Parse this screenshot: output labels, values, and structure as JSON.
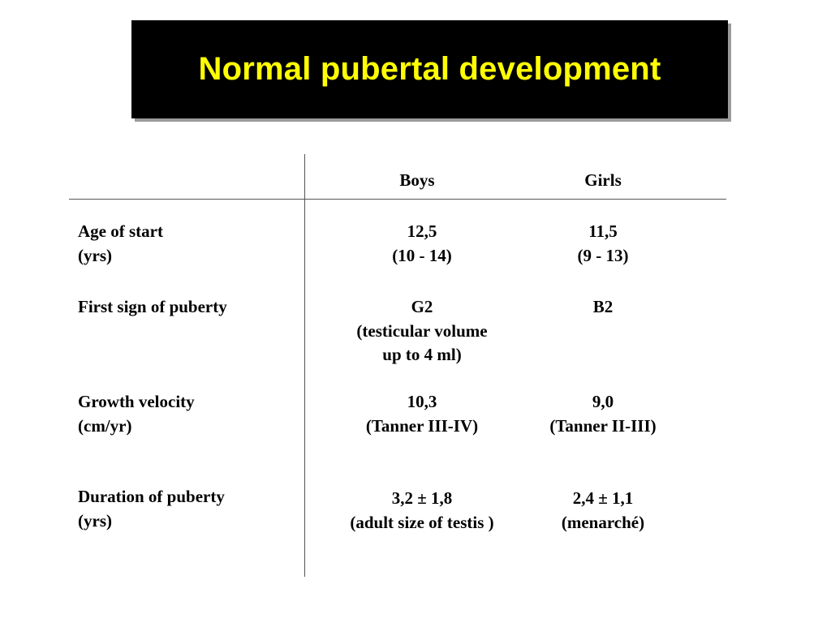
{
  "title": "Normal pubertal development",
  "table": {
    "headers": {
      "boys": "Boys",
      "girls": "Girls"
    },
    "rows": [
      {
        "label": [
          "Age of start",
          "(yrs)"
        ],
        "boys": [
          "12,5",
          "(10 - 14)"
        ],
        "girls": [
          "11,5",
          "(9 - 13)"
        ]
      },
      {
        "label": [
          "First sign of puberty"
        ],
        "boys": [
          "G2",
          "(testicular volume",
          "up to 4 ml)"
        ],
        "girls": [
          "B2"
        ]
      },
      {
        "label": [
          "Growth velocity",
          "(cm/yr)"
        ],
        "boys": [
          "10,3",
          "(Tanner III-IV)"
        ],
        "girls": [
          "9,0",
          "(Tanner II-III)"
        ]
      },
      {
        "label": [
          "Duration of puberty",
          "(yrs)"
        ],
        "boys": [
          "3,2 ± 1,8",
          "(adult size of testis )"
        ],
        "girls": [
          "2,4 ± 1,1",
          "(menarché)"
        ]
      }
    ]
  }
}
